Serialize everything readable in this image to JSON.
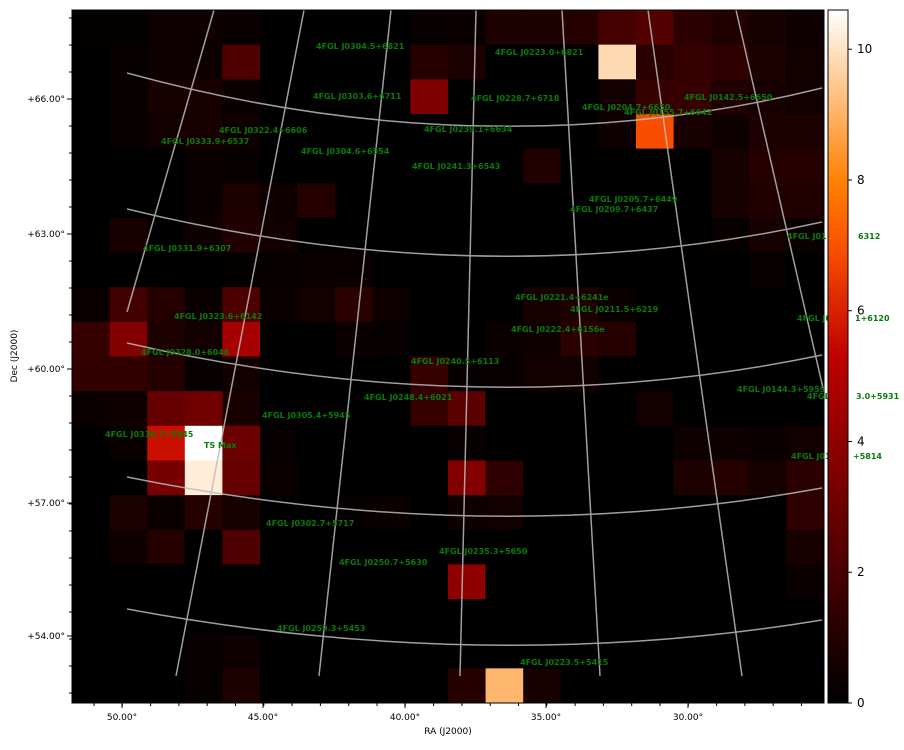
{
  "chart_data": {
    "type": "heatmap",
    "xlabel": "RA (J2000)",
    "ylabel": "Dec (J2000)",
    "x_tick_labels": [
      "50.00°",
      "45.00°",
      "40.00°",
      "35.00°",
      "30.00°"
    ],
    "y_tick_labels": [
      "+66.00°",
      "+63.00°",
      "+60.00°",
      "+57.00°",
      "+54.00°"
    ],
    "colormap": "gist_heat",
    "colorbar": {
      "min": 0,
      "max": 10.6,
      "tick_labels": [
        "0",
        "2",
        "4",
        "6",
        "8",
        "10"
      ]
    },
    "grid": true,
    "grid_color": "#bbbbbb",
    "label_color": "#0a7a0a",
    "ts_values": [
      [
        0.1,
        0.1,
        0.4,
        0.4,
        0.3,
        0,
        0,
        0,
        0,
        0.2,
        0.3,
        0.8,
        0.8,
        1.0,
        1.9,
        2.3,
        1.2,
        0.9,
        0.6,
        0.4
      ],
      [
        0,
        0.2,
        0.4,
        0.4,
        2.2,
        0,
        0,
        0,
        0,
        1.0,
        0.8,
        0,
        0,
        0,
        9.8,
        1.1,
        1.5,
        1.3,
        0.8,
        0.5
      ],
      [
        0,
        0.2,
        0.6,
        0.7,
        0.3,
        0,
        0,
        0,
        0,
        3.5,
        0,
        0,
        0,
        0,
        0.5,
        1.5,
        1.5,
        0.9,
        0.6,
        0.5
      ],
      [
        0,
        0.2,
        0.5,
        0.7,
        0.4,
        0,
        0,
        0,
        0,
        0,
        0,
        0,
        0,
        0,
        0.4,
        6.9,
        0.7,
        0.4,
        0.8,
        0.8
      ],
      [
        0,
        0,
        0,
        0.3,
        0.2,
        0,
        0,
        0,
        0,
        0,
        0,
        0,
        0.9,
        0,
        0,
        0,
        0,
        0.6,
        1.0,
        1.0
      ],
      [
        0,
        0,
        0,
        0.3,
        0.8,
        0.4,
        1.0,
        0,
        0,
        0,
        0,
        0,
        0,
        0,
        0,
        0,
        0,
        0.6,
        0.9,
        0.9
      ],
      [
        0,
        0.7,
        0,
        0.4,
        0.9,
        0.5,
        0,
        0,
        0,
        0,
        0,
        0,
        0,
        0,
        0,
        0,
        0,
        0.2,
        0.6,
        0.3
      ],
      [
        0,
        0,
        0,
        0,
        0.1,
        0.2,
        0.3,
        0.3,
        0,
        0,
        0,
        0,
        0,
        0,
        0,
        0,
        0,
        0,
        0.2,
        0
      ],
      [
        0.3,
        1.8,
        1.0,
        0.3,
        2.1,
        0.3,
        0.5,
        1.2,
        0.4,
        0,
        0,
        0,
        0.6,
        0.8,
        0.3,
        0,
        0,
        0,
        0,
        0
      ],
      [
        1.5,
        3.6,
        0.8,
        0.5,
        4.6,
        0,
        0,
        0.3,
        0.2,
        0,
        0,
        0.3,
        0.4,
        1.2,
        1.0,
        0,
        0,
        0,
        0,
        0
      ],
      [
        1.4,
        1.4,
        1.0,
        0.2,
        0.5,
        0,
        0,
        0,
        0,
        1.5,
        0.2,
        0.2,
        0.5,
        0.5,
        0,
        0,
        0,
        0,
        0,
        0
      ],
      [
        0.3,
        0.4,
        2.8,
        3.1,
        0.7,
        0,
        0,
        0,
        0,
        1.5,
        2.5,
        0,
        0,
        0,
        0,
        0.5,
        0,
        0,
        0,
        0
      ],
      [
        0,
        0.3,
        5.6,
        10.6,
        3.0,
        0.2,
        0,
        0,
        0,
        0,
        0.2,
        0,
        0,
        0,
        0,
        0,
        0.4,
        0.4,
        0.3,
        0.5
      ],
      [
        0,
        0,
        3.3,
        10.2,
        2.8,
        0.3,
        0,
        0,
        0,
        0,
        3.6,
        1.3,
        0,
        0,
        0,
        0,
        0.8,
        1.0,
        0.6,
        1.2
      ],
      [
        0,
        0.8,
        0.3,
        1.0,
        0.6,
        0,
        0,
        0.2,
        0.3,
        0,
        0.4,
        0.5,
        0,
        0,
        0,
        0,
        0,
        0,
        0,
        1.3
      ],
      [
        0,
        0.4,
        1.0,
        0,
        2.2,
        0,
        0,
        0,
        0,
        0,
        0,
        0,
        0,
        0,
        0,
        0,
        0,
        0,
        0,
        0.6
      ],
      [
        0,
        0,
        0,
        0,
        0,
        0,
        0,
        0,
        0,
        0,
        4.0,
        0,
        0,
        0,
        0,
        0,
        0,
        0,
        0,
        0.3
      ],
      [
        0,
        0,
        0,
        0,
        0,
        0,
        0,
        0,
        0,
        0,
        0,
        0,
        0,
        0,
        0,
        0,
        0,
        0,
        0,
        0
      ],
      [
        0,
        0,
        0,
        0.2,
        0.4,
        0,
        0,
        0,
        0,
        0,
        0,
        0,
        0,
        0,
        0,
        0,
        0,
        0,
        0,
        0
      ],
      [
        0,
        0,
        0,
        0.2,
        0.8,
        0,
        0,
        0,
        0,
        0,
        1.0,
        9.1,
        0.6,
        0,
        0,
        0,
        0,
        0,
        0,
        0
      ]
    ],
    "annotations": [
      "4FGL J0304.5+6821",
      "4FGL J0223.0+6821",
      "4FGL J0303.6+6711",
      "4FGL J0228.7+6718",
      "4FGL J0204.7+6650",
      "4FGL J0155.7+6642",
      "4FGL J0142.5+6650",
      "4FGL J0322.4+6606",
      "4FGL J0239.1+6634",
      "4FGL J0333.9+6537",
      "4FGL J0304.6+6554",
      "4FGL J0241.3+6543",
      "4FGL J0205.7+6449",
      "4FGL J0209.7+6437",
      "4FGL J01",
      "6312",
      "4FGL J0331.9+6307",
      "4FGL J0221.4+6241e",
      "4FGL J0211.5+6219",
      "4FGL J0323.6+6142",
      "4FGL J0",
      "1+6120",
      "4FGL J0222.4+6156e",
      "4FGL J0328.0+6046",
      "4FGL J0240.5+6113",
      "4FGL J0144.3+5959",
      "4FGL",
      "3.0+5931",
      "4FGL J0248.4+6021",
      "4FGL J0305.4+5945",
      "4FGL J0330.7+5845",
      "TS Max",
      "4FGL J01",
      "+5814",
      "4FGL J0302.7+5717",
      "4FGL J0235.3+5650",
      "4FGL J0250.7+5630",
      "4FGL J0259.3+5453",
      "4FGL J0223.5+5415"
    ]
  }
}
